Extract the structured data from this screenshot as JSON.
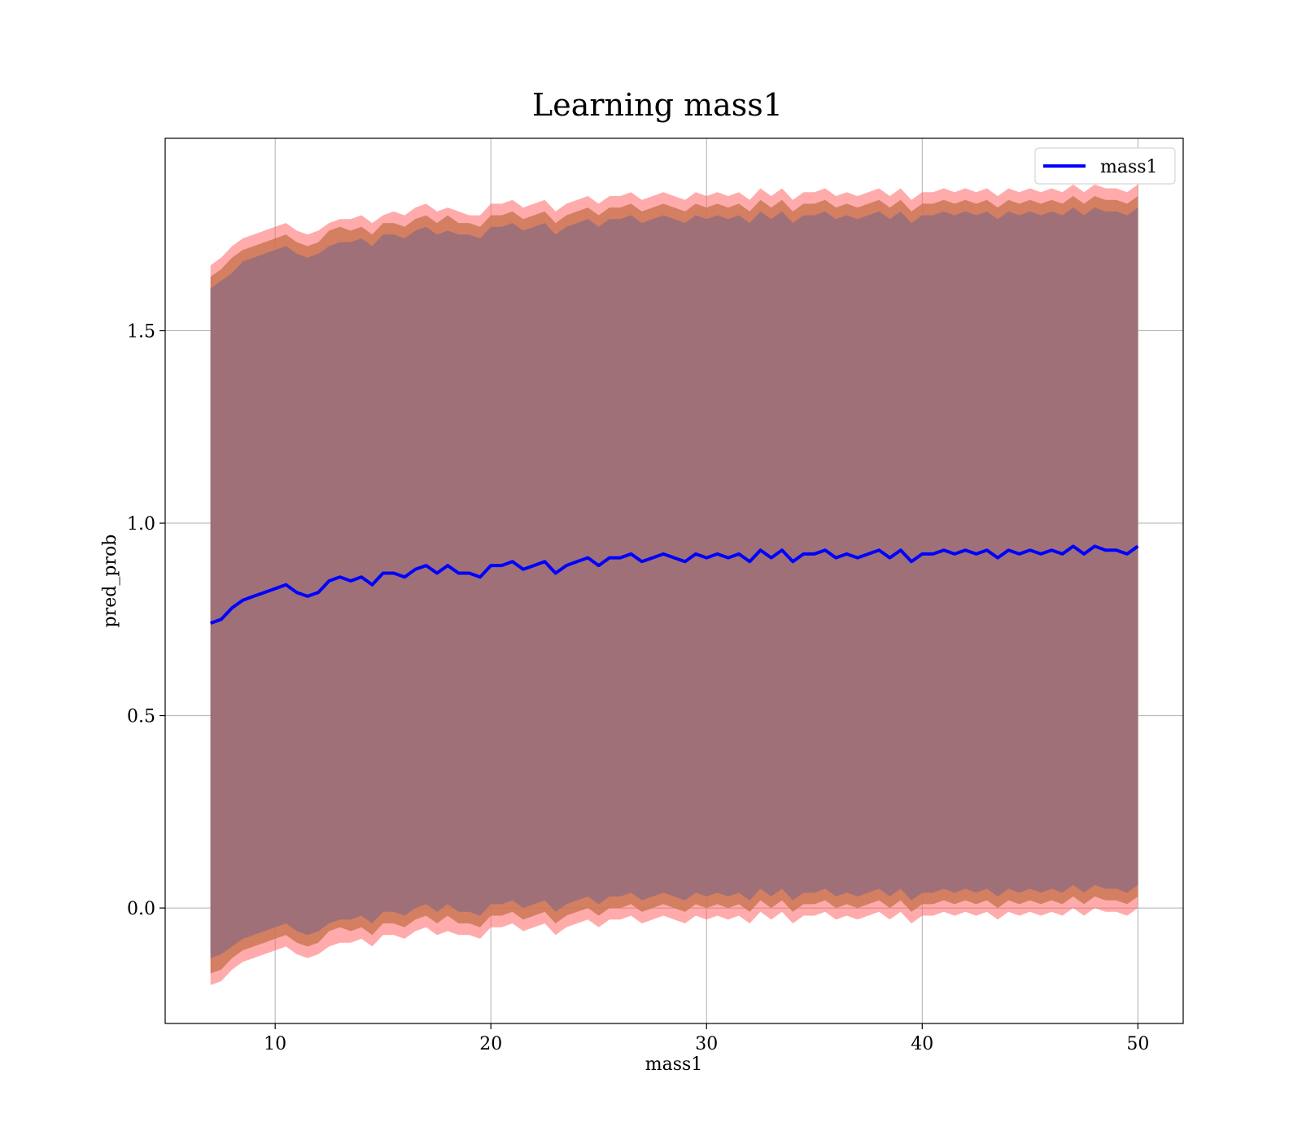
{
  "chart_data": {
    "type": "line",
    "title": "Learning mass1",
    "xlabel": "mass1",
    "ylabel": "pred_prob",
    "xlim": [
      4.9,
      52.1
    ],
    "ylim": [
      -0.3,
      2.0
    ],
    "xticks": [
      10,
      20,
      30,
      40,
      50
    ],
    "xtick_labels": [
      "10",
      "20",
      "30",
      "40",
      "50"
    ],
    "yticks": [
      0.0,
      0.5,
      1.0,
      1.5
    ],
    "ytick_labels": [
      "0.0",
      "0.5",
      "1.0",
      "1.5"
    ],
    "grid": true,
    "legend_position": "top-right",
    "colors": {
      "line": "#0000ff",
      "band_outer": "#ff6666",
      "band_middle": "#cc7755",
      "band_inner": "#a07078",
      "grid": "#b0b0b0"
    },
    "series": [
      {
        "name": "mass1",
        "x": [
          7.0,
          7.5,
          8.0,
          8.5,
          9.0,
          9.5,
          10.0,
          10.5,
          11.0,
          11.5,
          12.0,
          12.5,
          13.0,
          13.5,
          14.0,
          14.5,
          15.0,
          15.5,
          16.0,
          16.5,
          17.0,
          17.5,
          18.0,
          18.5,
          19.0,
          19.5,
          20.0,
          20.5,
          21.0,
          21.5,
          22.0,
          22.5,
          23.0,
          23.5,
          24.0,
          24.5,
          25.0,
          25.5,
          26.0,
          26.5,
          27.0,
          27.5,
          28.0,
          28.5,
          29.0,
          29.5,
          30.0,
          30.5,
          31.0,
          31.5,
          32.0,
          32.5,
          33.0,
          33.5,
          34.0,
          34.5,
          35.0,
          35.5,
          36.0,
          36.5,
          37.0,
          37.5,
          38.0,
          38.5,
          39.0,
          39.5,
          40.0,
          40.5,
          41.0,
          41.5,
          42.0,
          42.5,
          43.0,
          43.5,
          44.0,
          44.5,
          45.0,
          45.5,
          46.0,
          46.5,
          47.0,
          47.5,
          48.0,
          48.5,
          49.0,
          49.5,
          50.0
        ],
        "mean": [
          0.74,
          0.75,
          0.78,
          0.8,
          0.81,
          0.82,
          0.83,
          0.84,
          0.82,
          0.81,
          0.82,
          0.85,
          0.86,
          0.85,
          0.86,
          0.84,
          0.87,
          0.87,
          0.86,
          0.88,
          0.89,
          0.87,
          0.89,
          0.87,
          0.87,
          0.86,
          0.89,
          0.89,
          0.9,
          0.88,
          0.89,
          0.9,
          0.87,
          0.89,
          0.9,
          0.91,
          0.89,
          0.91,
          0.91,
          0.92,
          0.9,
          0.91,
          0.92,
          0.91,
          0.9,
          0.92,
          0.91,
          0.92,
          0.91,
          0.92,
          0.9,
          0.93,
          0.91,
          0.93,
          0.9,
          0.92,
          0.92,
          0.93,
          0.91,
          0.92,
          0.91,
          0.92,
          0.93,
          0.91,
          0.93,
          0.9,
          0.92,
          0.92,
          0.93,
          0.92,
          0.93,
          0.92,
          0.93,
          0.91,
          0.93,
          0.92,
          0.93,
          0.92,
          0.93,
          0.92,
          0.94,
          0.92,
          0.94,
          0.93,
          0.93,
          0.92,
          0.94
        ],
        "band_outer_upper": [
          1.67,
          1.69,
          1.72,
          1.74,
          1.75,
          1.76,
          1.77,
          1.78,
          1.76,
          1.75,
          1.76,
          1.78,
          1.79,
          1.79,
          1.8,
          1.78,
          1.8,
          1.81,
          1.8,
          1.82,
          1.83,
          1.81,
          1.82,
          1.81,
          1.8,
          1.8,
          1.83,
          1.83,
          1.84,
          1.82,
          1.83,
          1.84,
          1.81,
          1.83,
          1.84,
          1.85,
          1.83,
          1.85,
          1.85,
          1.86,
          1.84,
          1.85,
          1.86,
          1.85,
          1.84,
          1.86,
          1.85,
          1.86,
          1.85,
          1.86,
          1.84,
          1.87,
          1.85,
          1.87,
          1.84,
          1.86,
          1.86,
          1.87,
          1.85,
          1.86,
          1.85,
          1.86,
          1.87,
          1.85,
          1.87,
          1.84,
          1.86,
          1.86,
          1.87,
          1.86,
          1.87,
          1.86,
          1.87,
          1.85,
          1.87,
          1.86,
          1.87,
          1.86,
          1.87,
          1.86,
          1.88,
          1.86,
          1.88,
          1.87,
          1.87,
          1.86,
          1.88
        ],
        "band_outer_lower": [
          -0.2,
          -0.19,
          -0.16,
          -0.14,
          -0.13,
          -0.12,
          -0.11,
          -0.1,
          -0.12,
          -0.13,
          -0.12,
          -0.1,
          -0.09,
          -0.09,
          -0.08,
          -0.1,
          -0.07,
          -0.07,
          -0.08,
          -0.06,
          -0.05,
          -0.07,
          -0.06,
          -0.07,
          -0.07,
          -0.08,
          -0.05,
          -0.05,
          -0.04,
          -0.06,
          -0.05,
          -0.04,
          -0.07,
          -0.05,
          -0.04,
          -0.03,
          -0.05,
          -0.03,
          -0.03,
          -0.02,
          -0.04,
          -0.03,
          -0.02,
          -0.03,
          -0.04,
          -0.02,
          -0.03,
          -0.02,
          -0.03,
          -0.02,
          -0.04,
          -0.01,
          -0.03,
          -0.01,
          -0.04,
          -0.02,
          -0.02,
          -0.01,
          -0.03,
          -0.02,
          -0.03,
          -0.02,
          -0.01,
          -0.03,
          -0.01,
          -0.04,
          -0.02,
          -0.02,
          -0.01,
          -0.02,
          -0.01,
          -0.02,
          -0.01,
          -0.03,
          -0.01,
          -0.02,
          -0.01,
          -0.02,
          -0.01,
          -0.02,
          0.0,
          -0.02,
          0.0,
          -0.01,
          -0.01,
          -0.02,
          0.0
        ],
        "band_middle_upper": [
          1.64,
          1.66,
          1.69,
          1.71,
          1.72,
          1.73,
          1.74,
          1.75,
          1.73,
          1.72,
          1.73,
          1.76,
          1.77,
          1.76,
          1.77,
          1.75,
          1.78,
          1.78,
          1.77,
          1.79,
          1.8,
          1.78,
          1.8,
          1.78,
          1.78,
          1.77,
          1.8,
          1.8,
          1.81,
          1.79,
          1.8,
          1.81,
          1.78,
          1.8,
          1.81,
          1.82,
          1.8,
          1.82,
          1.82,
          1.83,
          1.81,
          1.82,
          1.83,
          1.82,
          1.81,
          1.83,
          1.82,
          1.83,
          1.82,
          1.83,
          1.81,
          1.84,
          1.82,
          1.84,
          1.81,
          1.83,
          1.83,
          1.84,
          1.82,
          1.83,
          1.82,
          1.83,
          1.84,
          1.82,
          1.84,
          1.81,
          1.83,
          1.83,
          1.84,
          1.83,
          1.84,
          1.83,
          1.84,
          1.82,
          1.84,
          1.83,
          1.84,
          1.83,
          1.84,
          1.83,
          1.85,
          1.83,
          1.85,
          1.84,
          1.84,
          1.83,
          1.85
        ],
        "band_middle_lower": [
          -0.17,
          -0.16,
          -0.13,
          -0.11,
          -0.1,
          -0.09,
          -0.08,
          -0.07,
          -0.09,
          -0.1,
          -0.09,
          -0.06,
          -0.05,
          -0.06,
          -0.05,
          -0.07,
          -0.04,
          -0.04,
          -0.05,
          -0.03,
          -0.02,
          -0.04,
          -0.02,
          -0.04,
          -0.04,
          -0.05,
          -0.02,
          -0.02,
          -0.01,
          -0.03,
          -0.02,
          -0.01,
          -0.04,
          -0.02,
          -0.01,
          0.0,
          -0.02,
          0.0,
          0.0,
          0.01,
          -0.01,
          0.0,
          0.01,
          0.0,
          -0.01,
          0.01,
          0.0,
          0.01,
          0.0,
          0.01,
          -0.01,
          0.02,
          0.0,
          0.02,
          -0.01,
          0.01,
          0.01,
          0.02,
          0.0,
          0.01,
          0.0,
          0.01,
          0.02,
          0.0,
          0.02,
          -0.01,
          0.01,
          0.01,
          0.02,
          0.01,
          0.02,
          0.01,
          0.02,
          0.0,
          0.02,
          0.01,
          0.02,
          0.01,
          0.02,
          0.01,
          0.03,
          0.01,
          0.03,
          0.02,
          0.02,
          0.01,
          0.03
        ],
        "band_inner_upper": [
          1.61,
          1.63,
          1.65,
          1.68,
          1.69,
          1.7,
          1.71,
          1.72,
          1.7,
          1.69,
          1.7,
          1.72,
          1.73,
          1.73,
          1.74,
          1.72,
          1.75,
          1.75,
          1.74,
          1.76,
          1.77,
          1.75,
          1.76,
          1.75,
          1.75,
          1.74,
          1.77,
          1.77,
          1.78,
          1.76,
          1.77,
          1.78,
          1.75,
          1.77,
          1.78,
          1.79,
          1.77,
          1.79,
          1.79,
          1.8,
          1.78,
          1.79,
          1.8,
          1.79,
          1.78,
          1.8,
          1.79,
          1.8,
          1.79,
          1.8,
          1.78,
          1.81,
          1.79,
          1.81,
          1.78,
          1.8,
          1.8,
          1.81,
          1.79,
          1.8,
          1.79,
          1.8,
          1.81,
          1.79,
          1.81,
          1.78,
          1.8,
          1.8,
          1.81,
          1.8,
          1.81,
          1.8,
          1.81,
          1.79,
          1.81,
          1.8,
          1.81,
          1.8,
          1.81,
          1.8,
          1.82,
          1.8,
          1.82,
          1.81,
          1.81,
          1.8,
          1.82
        ],
        "band_inner_lower": [
          -0.13,
          -0.12,
          -0.1,
          -0.08,
          -0.07,
          -0.06,
          -0.05,
          -0.04,
          -0.06,
          -0.07,
          -0.06,
          -0.04,
          -0.03,
          -0.03,
          -0.02,
          -0.04,
          -0.01,
          -0.01,
          -0.02,
          0.0,
          0.01,
          -0.01,
          0.01,
          -0.01,
          -0.01,
          -0.02,
          0.01,
          0.01,
          0.02,
          0.0,
          0.01,
          0.02,
          -0.01,
          0.01,
          0.02,
          0.03,
          0.01,
          0.03,
          0.03,
          0.04,
          0.02,
          0.03,
          0.04,
          0.03,
          0.02,
          0.04,
          0.03,
          0.04,
          0.03,
          0.04,
          0.02,
          0.05,
          0.03,
          0.05,
          0.02,
          0.04,
          0.04,
          0.05,
          0.03,
          0.04,
          0.03,
          0.04,
          0.05,
          0.03,
          0.05,
          0.02,
          0.04,
          0.04,
          0.05,
          0.04,
          0.05,
          0.04,
          0.05,
          0.03,
          0.05,
          0.04,
          0.05,
          0.04,
          0.05,
          0.04,
          0.06,
          0.04,
          0.06,
          0.05,
          0.05,
          0.04,
          0.06
        ]
      }
    ]
  }
}
